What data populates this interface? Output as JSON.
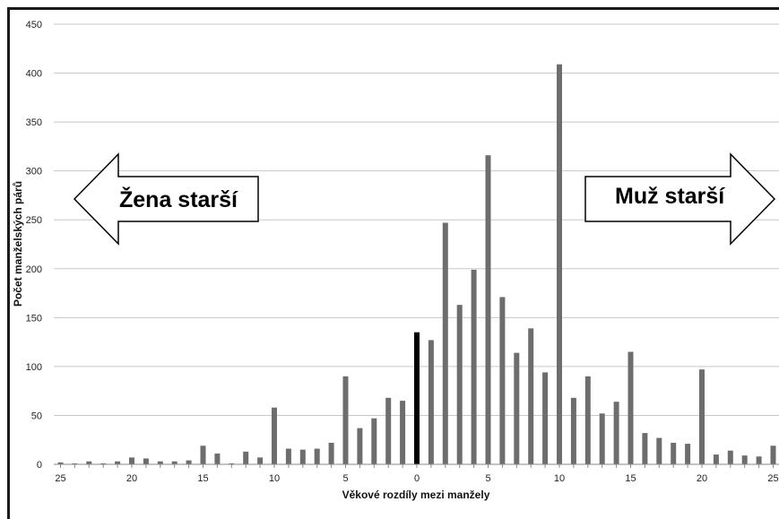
{
  "chart_data": {
    "type": "bar",
    "xlabel": "Věkové rozdíly mezi manžely",
    "ylabel": "Počet manželských párů",
    "ylim": [
      0,
      450
    ],
    "y_ticks": [
      0,
      50,
      100,
      150,
      200,
      250,
      300,
      350,
      400,
      450
    ],
    "x_ticks": [
      -25,
      -20,
      -15,
      -10,
      -5,
      0,
      5,
      10,
      15,
      20,
      25
    ],
    "x_tick_labels": [
      "25",
      "20",
      "15",
      "10",
      "5",
      "0",
      "5",
      "10",
      "15",
      "20",
      "25"
    ],
    "grid": true,
    "x": [
      -25,
      -24,
      -23,
      -22,
      -21,
      -20,
      -19,
      -18,
      -17,
      -16,
      -15,
      -14,
      -13,
      -12,
      -11,
      -10,
      -9,
      -8,
      -7,
      -6,
      -5,
      -4,
      -3,
      -2,
      -1,
      0,
      1,
      2,
      3,
      4,
      5,
      6,
      7,
      8,
      9,
      10,
      11,
      12,
      13,
      14,
      15,
      16,
      17,
      18,
      19,
      20,
      21,
      22,
      23,
      24,
      25
    ],
    "values": [
      2,
      1,
      3,
      1,
      3,
      7,
      6,
      3,
      3,
      4,
      19,
      11,
      1,
      13,
      7,
      58,
      16,
      15,
      16,
      22,
      90,
      37,
      47,
      68,
      65,
      135,
      127,
      247,
      163,
      199,
      316,
      171,
      114,
      139,
      94,
      409,
      68,
      90,
      52,
      64,
      115,
      32,
      27,
      22,
      21,
      97,
      10,
      14,
      9,
      8,
      19
    ],
    "colors": {
      "default": "#6d6d6d",
      "zero": "#000000"
    },
    "annotations": [
      {
        "text": "Žena starší",
        "direction": "left"
      },
      {
        "text": "Muž starší",
        "direction": "right"
      }
    ]
  }
}
